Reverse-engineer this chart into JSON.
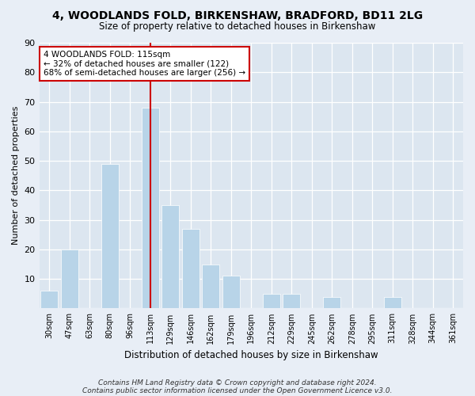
{
  "title1": "4, WOODLANDS FOLD, BIRKENSHAW, BRADFORD, BD11 2LG",
  "title2": "Size of property relative to detached houses in Birkenshaw",
  "xlabel": "Distribution of detached houses by size in Birkenshaw",
  "ylabel": "Number of detached properties",
  "categories": [
    "30sqm",
    "47sqm",
    "63sqm",
    "80sqm",
    "96sqm",
    "113sqm",
    "129sqm",
    "146sqm",
    "162sqm",
    "179sqm",
    "196sqm",
    "212sqm",
    "229sqm",
    "245sqm",
    "262sqm",
    "278sqm",
    "295sqm",
    "311sqm",
    "328sqm",
    "344sqm",
    "361sqm"
  ],
  "values": [
    6,
    20,
    0,
    49,
    0,
    68,
    35,
    27,
    15,
    11,
    0,
    5,
    5,
    0,
    4,
    0,
    0,
    4,
    0,
    0,
    0
  ],
  "highlight_index": 5,
  "bar_color": "#b8d4e8",
  "highlight_line_color": "#cc0000",
  "annotation_line1": "4 WOODLANDS FOLD: 115sqm",
  "annotation_line2": "← 32% of detached houses are smaller (122)",
  "annotation_line3": "68% of semi-detached houses are larger (256) →",
  "annotation_box_facecolor": "#ffffff",
  "annotation_box_edgecolor": "#cc0000",
  "ylim": [
    0,
    90
  ],
  "yticks": [
    0,
    10,
    20,
    30,
    40,
    50,
    60,
    70,
    80,
    90
  ],
  "background_color": "#e8eef6",
  "plot_bg_color": "#dce6f0",
  "footer_line1": "Contains HM Land Registry data © Crown copyright and database right 2024.",
  "footer_line2": "Contains public sector information licensed under the Open Government Licence v3.0."
}
